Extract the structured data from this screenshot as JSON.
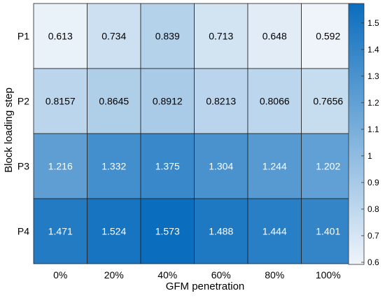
{
  "chart_data": {
    "type": "heatmap",
    "title": "",
    "xlabel": "GFM penetration",
    "ylabel": "Block loading step",
    "x_categories": [
      "0%",
      "20%",
      "40%",
      "60%",
      "80%",
      "100%"
    ],
    "y_categories": [
      "P1",
      "P2",
      "P3",
      "P4"
    ],
    "values": [
      [
        0.613,
        0.734,
        0.839,
        0.713,
        0.648,
        0.592
      ],
      [
        0.8157,
        0.8645,
        0.8912,
        0.8213,
        0.8066,
        0.7656
      ],
      [
        1.216,
        1.332,
        1.375,
        1.304,
        1.244,
        1.202
      ],
      [
        1.471,
        1.524,
        1.573,
        1.488,
        1.444,
        1.401
      ]
    ],
    "labels": [
      [
        "0.613",
        "0.734",
        "0.839",
        "0.713",
        "0.648",
        "0.592"
      ],
      [
        "0.8157",
        "0.8645",
        "0.8912",
        "0.8213",
        "0.8066",
        "0.7656"
      ],
      [
        "1.216",
        "1.332",
        "1.375",
        "1.304",
        "1.244",
        "1.202"
      ],
      [
        "1.471",
        "1.524",
        "1.573",
        "1.488",
        "1.444",
        "1.401"
      ]
    ],
    "colorbar": {
      "range": [
        0.592,
        1.573
      ],
      "ticks": [
        0.6,
        0.7,
        0.8,
        0.9,
        1.0,
        1.1,
        1.2,
        1.3,
        1.4,
        1.5
      ],
      "tick_labels": [
        "0.6",
        "0.7",
        "0.8",
        "0.9",
        "1",
        "1.1",
        "1.2",
        "1.3",
        "1.4",
        "1.5"
      ],
      "color_low": "#eef4fa",
      "color_high": "#0b6dbd"
    },
    "label_color_dark": "#000000",
    "label_color_light": "#ffffff",
    "grid_color": "#202020"
  }
}
